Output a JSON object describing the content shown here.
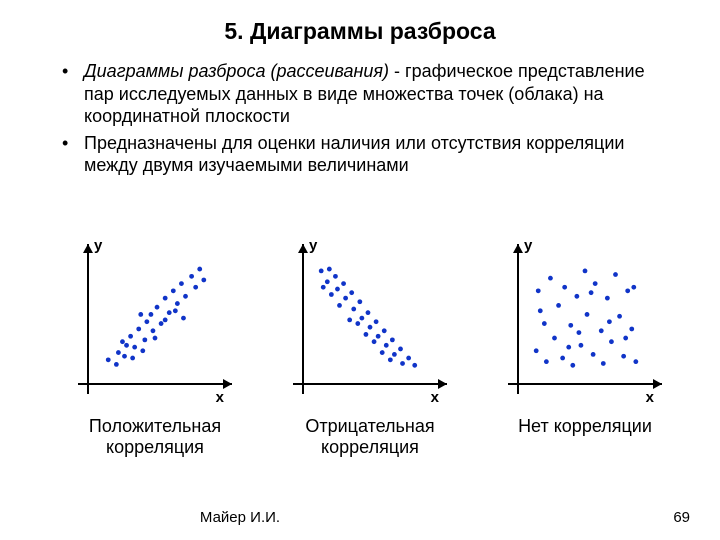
{
  "title": "5. Диаграммы разброса",
  "bullets": [
    {
      "lead_italic": "Диаграммы разброса (рассеивания)",
      "rest": " - графическое представление пар исследуемых данных в виде множества точек (облака) на координатной плоскости"
    },
    {
      "lead_italic": "",
      "rest": "Предназначены для оценки наличия или отсутствия корреляции между двумя изучаемыми величинами"
    }
  ],
  "footer": {
    "author": "Майер И.И.",
    "page": "69"
  },
  "chart_style": {
    "axis_color": "#000000",
    "axis_width": 2,
    "point_color": "#1034c8",
    "point_radius": 2.4,
    "label_font": "bold 15px Arial"
  },
  "charts": [
    {
      "caption": "Положительная\nкорреляция",
      "xlabel": "x",
      "ylabel": "y",
      "points": [
        [
          14,
          20
        ],
        [
          22,
          15
        ],
        [
          24,
          28
        ],
        [
          30,
          24
        ],
        [
          32,
          36
        ],
        [
          36,
          46
        ],
        [
          40,
          34
        ],
        [
          44,
          54
        ],
        [
          50,
          42
        ],
        [
          52,
          62
        ],
        [
          56,
          70
        ],
        [
          58,
          52
        ],
        [
          62,
          78
        ],
        [
          66,
          60
        ],
        [
          70,
          88
        ],
        [
          74,
          72
        ],
        [
          78,
          96
        ],
        [
          82,
          82
        ],
        [
          86,
          104
        ],
        [
          90,
          90
        ],
        [
          96,
          112
        ],
        [
          100,
          100
        ],
        [
          104,
          120
        ],
        [
          108,
          108
        ],
        [
          46,
          70
        ],
        [
          60,
          44
        ],
        [
          70,
          64
        ],
        [
          80,
          74
        ],
        [
          88,
          66
        ],
        [
          28,
          40
        ],
        [
          38,
          22
        ],
        [
          48,
          30
        ]
      ]
    },
    {
      "caption": "Отрицательная\nкорреляция",
      "xlabel": "x",
      "ylabel": "y",
      "points": [
        [
          12,
          118
        ],
        [
          18,
          106
        ],
        [
          20,
          120
        ],
        [
          26,
          112
        ],
        [
          28,
          98
        ],
        [
          34,
          104
        ],
        [
          36,
          88
        ],
        [
          42,
          94
        ],
        [
          44,
          76
        ],
        [
          50,
          84
        ],
        [
          52,
          66
        ],
        [
          58,
          72
        ],
        [
          60,
          56
        ],
        [
          66,
          62
        ],
        [
          68,
          46
        ],
        [
          74,
          52
        ],
        [
          76,
          36
        ],
        [
          82,
          42
        ],
        [
          84,
          26
        ],
        [
          90,
          32
        ],
        [
          92,
          16
        ],
        [
          98,
          22
        ],
        [
          104,
          14
        ],
        [
          22,
          92
        ],
        [
          30,
          80
        ],
        [
          40,
          64
        ],
        [
          48,
          60
        ],
        [
          56,
          48
        ],
        [
          64,
          40
        ],
        [
          72,
          28
        ],
        [
          80,
          20
        ],
        [
          14,
          100
        ]
      ]
    },
    {
      "caption": "Нет корреляции",
      "xlabel": "x",
      "ylabel": "y",
      "points": [
        [
          12,
          30
        ],
        [
          14,
          96
        ],
        [
          20,
          60
        ],
        [
          22,
          18
        ],
        [
          26,
          110
        ],
        [
          30,
          44
        ],
        [
          34,
          80
        ],
        [
          38,
          22
        ],
        [
          40,
          100
        ],
        [
          46,
          58
        ],
        [
          48,
          14
        ],
        [
          52,
          90
        ],
        [
          56,
          36
        ],
        [
          60,
          118
        ],
        [
          62,
          70
        ],
        [
          68,
          26
        ],
        [
          70,
          104
        ],
        [
          76,
          52
        ],
        [
          78,
          16
        ],
        [
          82,
          88
        ],
        [
          86,
          40
        ],
        [
          90,
          114
        ],
        [
          94,
          68
        ],
        [
          98,
          24
        ],
        [
          102,
          96
        ],
        [
          106,
          54
        ],
        [
          110,
          18
        ],
        [
          16,
          74
        ],
        [
          44,
          34
        ],
        [
          54,
          50
        ],
        [
          66,
          94
        ],
        [
          84,
          62
        ],
        [
          100,
          44
        ],
        [
          108,
          100
        ]
      ]
    }
  ]
}
